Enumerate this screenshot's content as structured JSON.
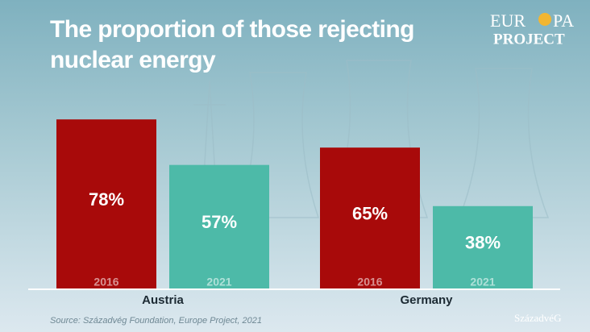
{
  "chart_data": {
    "type": "bar",
    "title": "The proportion of those rejecting nuclear energy",
    "categories": [
      "Austria",
      "Germany"
    ],
    "series": [
      {
        "name": "2016",
        "color": "#a80a0a",
        "values": [
          78,
          65
        ],
        "value_labels": [
          "78%",
          "65%"
        ]
      },
      {
        "name": "2021",
        "color": "#4dbaa8",
        "values": [
          57,
          38
        ],
        "value_labels": [
          "57%",
          "38%"
        ]
      }
    ],
    "source": "Source: Századvég Foundation, Europe Project, 2021",
    "logo": [
      "EUR",
      "PA",
      "PROJECT"
    ],
    "publisher": "SzázadvéG"
  }
}
